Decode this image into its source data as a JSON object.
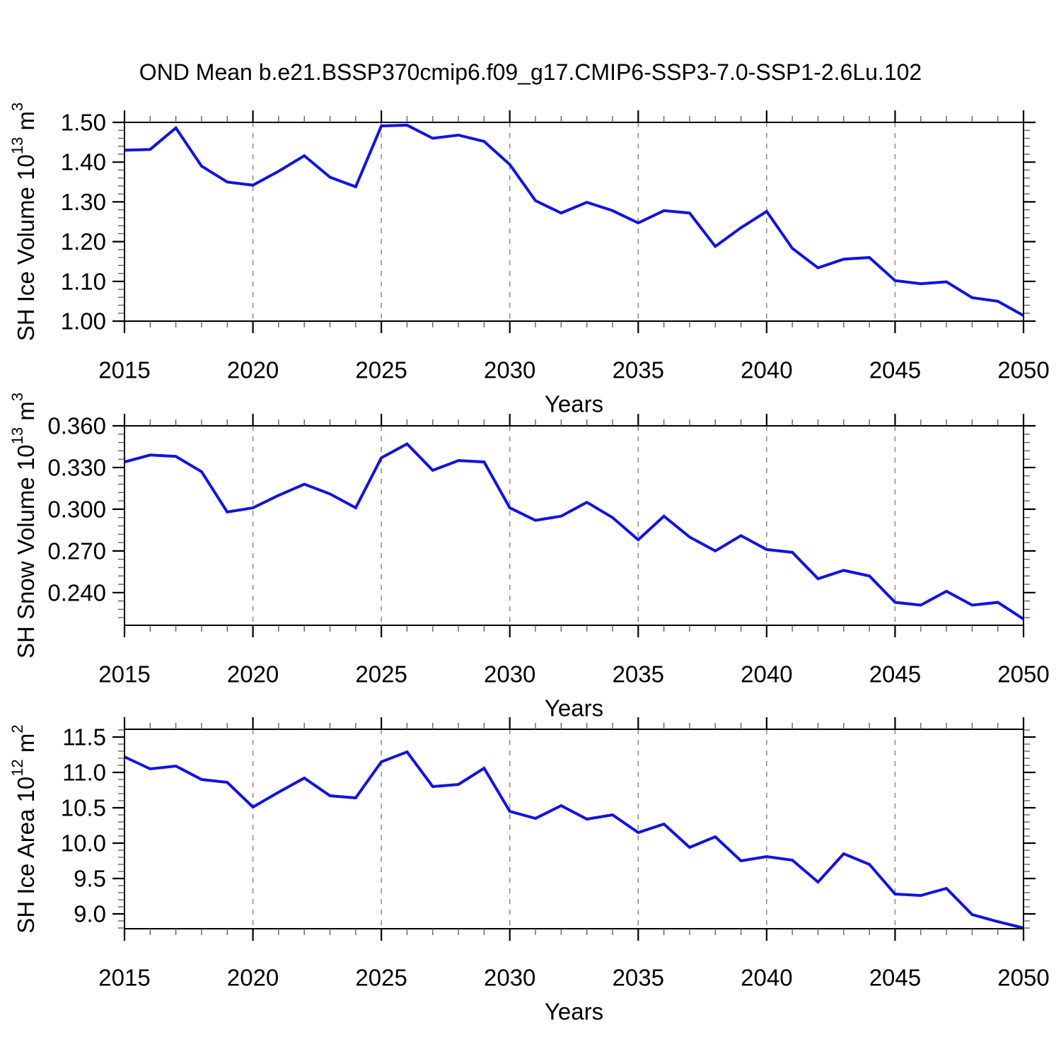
{
  "chart_data": {
    "type": "line",
    "title": "OND Mean b.e21.BSSP370cmip6.f09_g17.CMIP6-SSP3-7.0-SSP1-2.6Lu.102",
    "xlabel": "Years",
    "legend": "none",
    "grid": "vertical-dashed-at-5yr-majors",
    "colors": {
      "line": "#1212e0",
      "grid": "#8a8a8a",
      "axis": "#000000",
      "minor_tick": "#555555",
      "text": "#000000",
      "background": "#ffffff"
    },
    "xlim": [
      2015,
      2050
    ],
    "xtick_major": [
      2015,
      2020,
      2025,
      2030,
      2035,
      2040,
      2045,
      2050
    ],
    "xtick_labels": [
      "2015",
      "2020",
      "2025",
      "2030",
      "2035",
      "2040",
      "2045",
      "2050"
    ],
    "xtick_minor_step": 1,
    "x_gridlines": [
      2020,
      2025,
      2030,
      2035,
      2040,
      2045
    ],
    "years": [
      2015,
      2016,
      2017,
      2018,
      2019,
      2020,
      2021,
      2022,
      2023,
      2024,
      2025,
      2026,
      2027,
      2028,
      2029,
      2030,
      2031,
      2032,
      2033,
      2034,
      2035,
      2036,
      2037,
      2038,
      2039,
      2040,
      2041,
      2042,
      2043,
      2044,
      2045,
      2046,
      2047,
      2048,
      2049,
      2050
    ],
    "panels": [
      {
        "name": "sh-ice-volume",
        "ylabel": "SH Ice Volume 10¹³ m³",
        "ylabel_parts": [
          {
            "t": "SH Ice Volume 10"
          },
          {
            "t": "13",
            "sup": true
          },
          {
            "t": " m"
          },
          {
            "t": "3",
            "sup": true
          }
        ],
        "ylim": [
          1.0,
          1.5
        ],
        "ytick_major": [
          1.0,
          1.1,
          1.2,
          1.3,
          1.4,
          1.5
        ],
        "ytick_labels": [
          "1.00",
          "1.10",
          "1.20",
          "1.30",
          "1.40",
          "1.50"
        ],
        "ytick_minor_step": 0.02,
        "values": [
          1.43,
          1.432,
          1.486,
          1.39,
          1.35,
          1.342,
          1.377,
          1.416,
          1.362,
          1.338,
          1.491,
          1.493,
          1.46,
          1.468,
          1.452,
          1.394,
          1.303,
          1.272,
          1.299,
          1.278,
          1.247,
          1.278,
          1.272,
          1.188,
          1.235,
          1.276,
          1.183,
          1.134,
          1.156,
          1.16,
          1.102,
          1.094,
          1.099,
          1.059,
          1.05,
          1.014
        ]
      },
      {
        "name": "sh-snow-volume",
        "ylabel": "SH Snow Volume 10¹³ m³",
        "ylabel_parts": [
          {
            "t": "SH Snow Volume 10"
          },
          {
            "t": "13",
            "sup": true
          },
          {
            "t": " m"
          },
          {
            "t": "3",
            "sup": true
          }
        ],
        "ylim": [
          0.2165,
          0.36
        ],
        "ytick_major": [
          0.24,
          0.27,
          0.3,
          0.33,
          0.36
        ],
        "ytick_labels": [
          "0.240",
          "0.270",
          "0.300",
          "0.330",
          "0.360"
        ],
        "ytick_minor_step": 0.006,
        "values": [
          0.334,
          0.339,
          0.338,
          0.327,
          0.298,
          0.301,
          0.31,
          0.318,
          0.311,
          0.301,
          0.337,
          0.347,
          0.328,
          0.335,
          0.334,
          0.301,
          0.292,
          0.295,
          0.305,
          0.294,
          0.278,
          0.295,
          0.28,
          0.27,
          0.281,
          0.271,
          0.269,
          0.25,
          0.256,
          0.252,
          0.233,
          0.231,
          0.241,
          0.231,
          0.233,
          0.221
        ]
      },
      {
        "name": "sh-ice-area",
        "ylabel": "SH Ice Area 10¹² m²",
        "ylabel_parts": [
          {
            "t": "SH Ice Area 10"
          },
          {
            "t": "12",
            "sup": true
          },
          {
            "t": " m"
          },
          {
            "t": "2",
            "sup": true
          }
        ],
        "ylim": [
          8.79,
          11.61
        ],
        "ytick_major": [
          9.0,
          9.5,
          10.0,
          10.5,
          11.0,
          11.5
        ],
        "ytick_labels": [
          "9.0",
          "9.5",
          "10.0",
          "10.5",
          "11.0",
          "11.5"
        ],
        "ytick_minor_step": 0.1,
        "values": [
          11.22,
          11.05,
          11.09,
          10.9,
          10.86,
          10.51,
          10.72,
          10.92,
          10.67,
          10.64,
          11.15,
          11.29,
          10.8,
          10.83,
          11.06,
          10.45,
          10.35,
          10.53,
          10.34,
          10.4,
          10.15,
          10.27,
          9.94,
          10.09,
          9.75,
          9.81,
          9.76,
          9.45,
          9.85,
          9.7,
          9.28,
          9.26,
          9.36,
          8.99,
          8.89,
          8.8
        ]
      }
    ]
  }
}
